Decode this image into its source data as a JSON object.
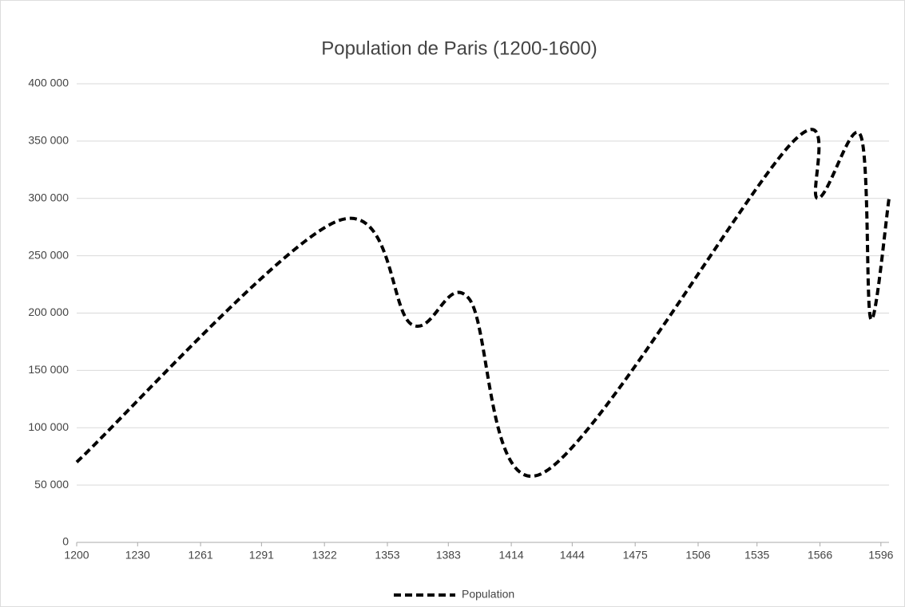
{
  "chart_data": {
    "type": "line",
    "title": "Population de Paris (1200-1600)",
    "x": [
      1200,
      1328,
      1365,
      1393,
      1429,
      1553,
      1565,
      1586,
      1591,
      1600
    ],
    "series": [
      {
        "name": "Population",
        "color": "#000000",
        "values": [
          70000,
          280000,
          190000,
          213000,
          60000,
          350000,
          300000,
          355000,
          195000,
          300000
        ]
      }
    ],
    "xlim": [
      1200,
      1600
    ],
    "xticks": [
      1200,
      1230,
      1261,
      1291,
      1322,
      1353,
      1383,
      1414,
      1444,
      1475,
      1506,
      1535,
      1566,
      1596
    ],
    "ylim": [
      0,
      400000
    ],
    "yticks": [
      0,
      {
        "value": 50000,
        "label": "50 000"
      },
      {
        "value": 100000,
        "label": "100 000"
      },
      {
        "value": 150000,
        "label": "150 000"
      },
      {
        "value": 200000,
        "label": "200 000"
      },
      {
        "value": 250000,
        "label": "250 000"
      },
      {
        "value": 300000,
        "label": "300 000"
      },
      {
        "value": 350000,
        "label": "350 000"
      },
      {
        "value": 400000,
        "label": "400 000"
      }
    ],
    "grid": true,
    "legend": "bottom",
    "smooth": true,
    "dashed": true
  }
}
